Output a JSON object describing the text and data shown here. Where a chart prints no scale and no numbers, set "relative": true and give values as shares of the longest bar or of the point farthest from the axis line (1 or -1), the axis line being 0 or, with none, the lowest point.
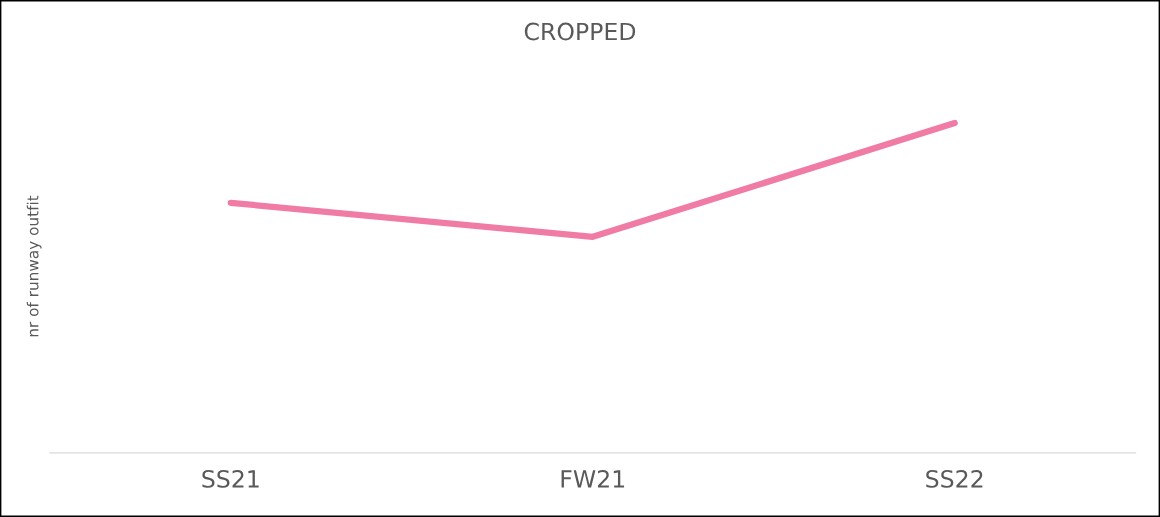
{
  "chart_data": {
    "type": "line",
    "title": "CROPPED",
    "ylabel": "nr of runway outfit",
    "categories": [
      "SS21",
      "FW21",
      "SS22"
    ],
    "relative": true,
    "series": [
      {
        "color": "#f07ba4",
        "values": [
          0.758,
          0.655,
          1.0
        ]
      }
    ],
    "grid": false,
    "legend": false,
    "marker": "none",
    "line_style": "solid"
  }
}
